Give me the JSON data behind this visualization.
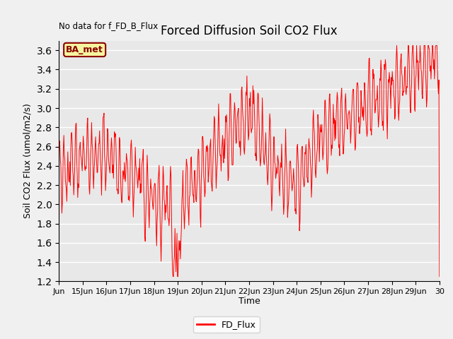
{
  "title": "Forced Diffusion Soil CO2 Flux",
  "ylabel": "Soil CO2 Flux (umol/m2/s)",
  "xlabel": "Time",
  "no_data_text": "No data for f_FD_B_Flux",
  "annotation_text": "BA_met",
  "legend_label": "FD_Flux",
  "line_color": "#ff0000",
  "plot_bg_color": "#e8e8e8",
  "fig_bg_color": "#f0f0f0",
  "ylim": [
    1.2,
    3.7
  ],
  "yticks": [
    1.2,
    1.4,
    1.6,
    1.8,
    2.0,
    2.2,
    2.4,
    2.6,
    2.8,
    3.0,
    3.2,
    3.4,
    3.6
  ],
  "xlim": [
    14,
    30
  ],
  "x_tick_days": [
    14,
    15,
    16,
    17,
    18,
    19,
    20,
    21,
    22,
    23,
    24,
    25,
    26,
    27,
    28,
    29,
    30
  ],
  "x_tick_labels": [
    "Jun",
    "15Jun",
    "16Jun",
    "17Jun",
    "18Jun",
    "19Jun",
    "20Jun",
    "21Jun",
    "22Jun",
    "23Jun",
    "24Jun",
    "25Jun",
    "26Jun",
    "27Jun",
    "28Jun",
    "29Jun",
    "30"
  ]
}
